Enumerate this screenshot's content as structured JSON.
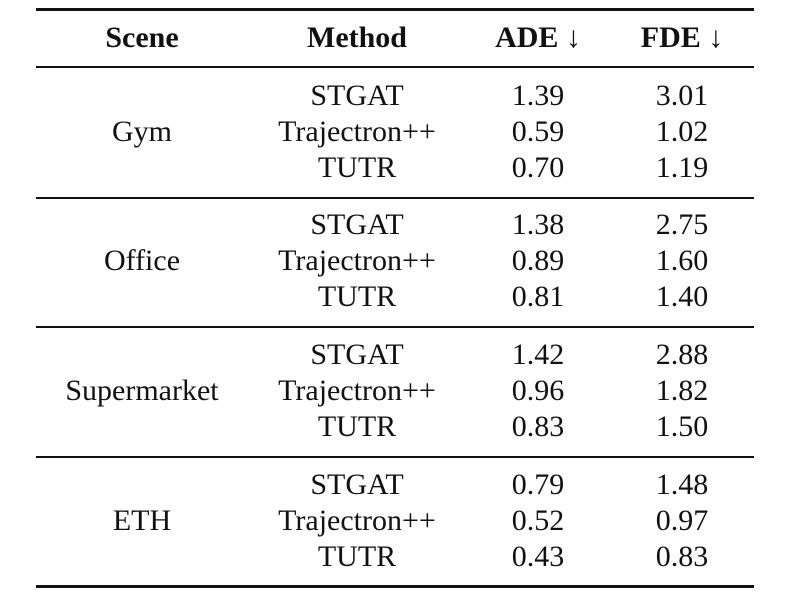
{
  "table": {
    "headers": {
      "scene": "Scene",
      "method": "Method",
      "ade": "ADE ↓",
      "fde": "FDE ↓"
    },
    "groups": [
      {
        "scene": "Gym",
        "rows": [
          {
            "method": "STGAT",
            "ade": "1.39",
            "fde": "3.01"
          },
          {
            "method": "Trajectron++",
            "ade": "0.59",
            "fde": "1.02"
          },
          {
            "method": "TUTR",
            "ade": "0.70",
            "fde": "1.19"
          }
        ]
      },
      {
        "scene": "Office",
        "rows": [
          {
            "method": "STGAT",
            "ade": "1.38",
            "fde": "2.75"
          },
          {
            "method": "Trajectron++",
            "ade": "0.89",
            "fde": "1.60"
          },
          {
            "method": "TUTR",
            "ade": "0.81",
            "fde": "1.40"
          }
        ]
      },
      {
        "scene": "Supermarket",
        "rows": [
          {
            "method": "STGAT",
            "ade": "1.42",
            "fde": "2.88"
          },
          {
            "method": "Trajectron++",
            "ade": "0.96",
            "fde": "1.82"
          },
          {
            "method": "TUTR",
            "ade": "0.83",
            "fde": "1.50"
          }
        ]
      },
      {
        "scene": "ETH",
        "rows": [
          {
            "method": "STGAT",
            "ade": "0.79",
            "fde": "1.48"
          },
          {
            "method": "Trajectron++",
            "ade": "0.52",
            "fde": "0.97"
          },
          {
            "method": "TUTR",
            "ade": "0.43",
            "fde": "0.83"
          }
        ]
      }
    ]
  }
}
